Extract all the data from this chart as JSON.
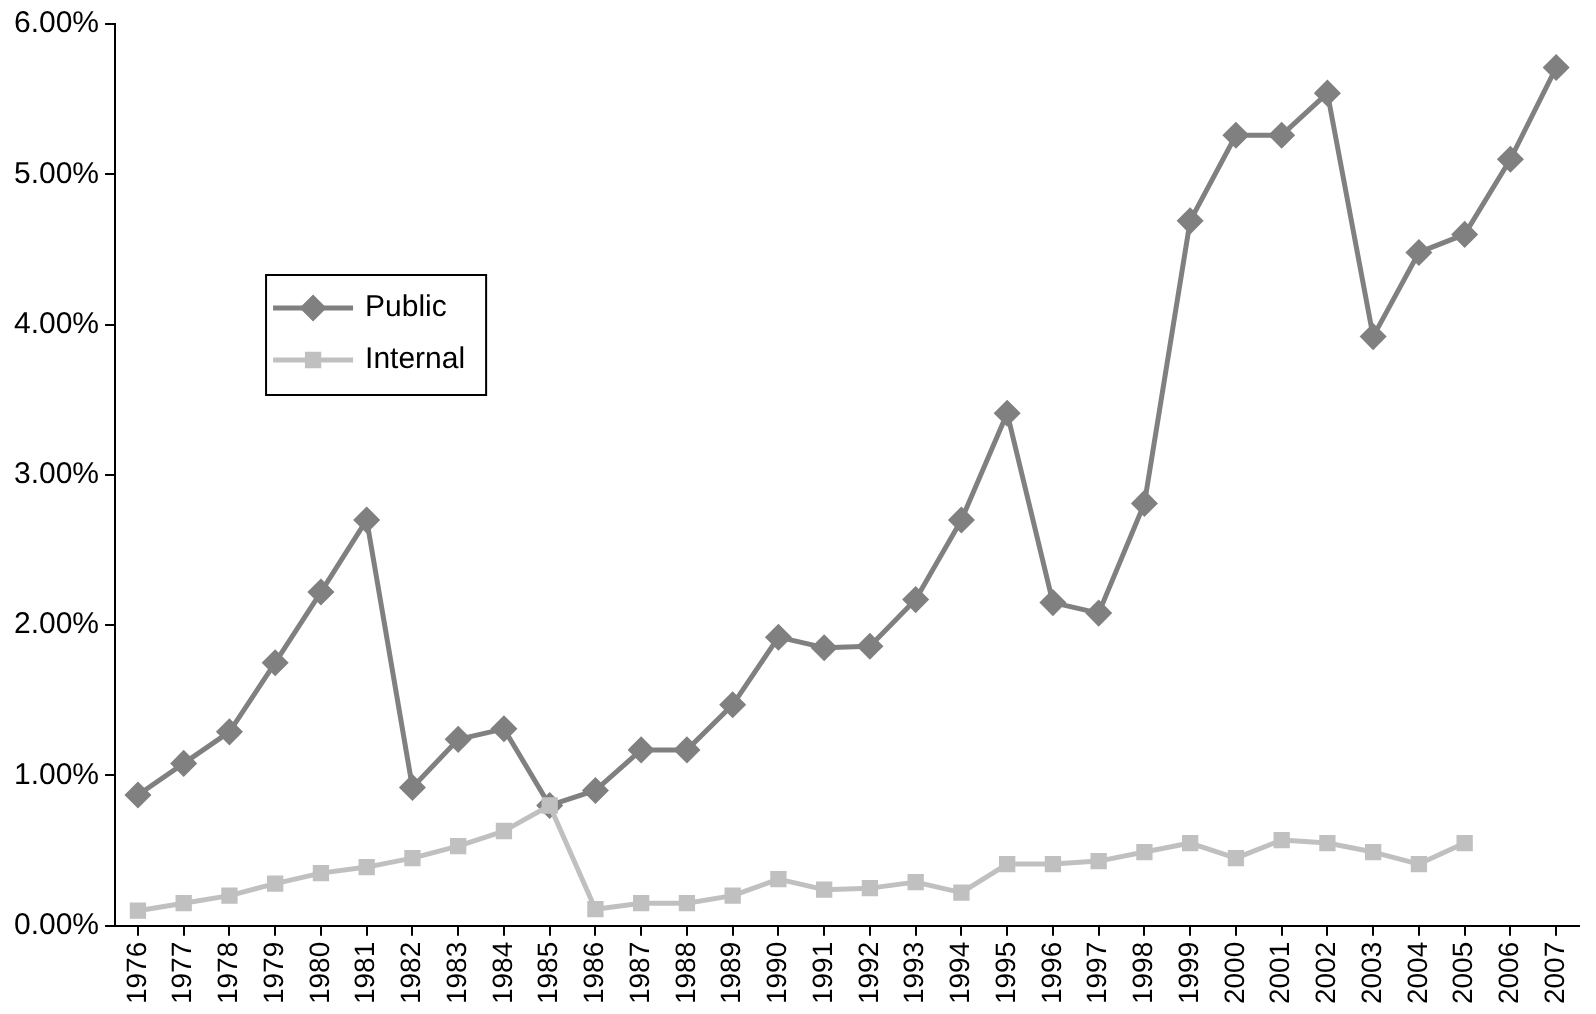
{
  "chart_data": {
    "type": "line",
    "categories": [
      "1976",
      "1977",
      "1978",
      "1979",
      "1980",
      "1981",
      "1982",
      "1983",
      "1984",
      "1985",
      "1986",
      "1987",
      "1988",
      "1989",
      "1990",
      "1991",
      "1992",
      "1993",
      "1994",
      "1995",
      "1996",
      "1997",
      "1998",
      "1999",
      "2000",
      "2001",
      "2002",
      "2003",
      "2004",
      "2005",
      "2006",
      "2007"
    ],
    "series": [
      {
        "name": "Public",
        "color": "#808080",
        "marker": "diamond",
        "values": [
          0.87,
          1.08,
          1.29,
          1.75,
          2.22,
          2.7,
          0.92,
          1.24,
          1.31,
          0.8,
          0.9,
          1.17,
          1.17,
          1.47,
          1.92,
          1.85,
          1.86,
          2.17,
          2.7,
          3.41,
          2.15,
          2.08,
          2.81,
          4.69,
          5.26,
          5.26,
          5.54,
          3.92,
          4.48,
          4.6,
          5.1,
          5.71
        ]
      },
      {
        "name": "Internal",
        "color": "#c0c0c0",
        "marker": "square",
        "values": [
          0.1,
          0.15,
          0.2,
          0.28,
          0.35,
          0.39,
          0.45,
          0.53,
          0.63,
          0.8,
          0.11,
          0.15,
          0.15,
          0.2,
          0.31,
          0.24,
          0.25,
          0.29,
          0.22,
          0.41,
          0.41,
          0.43,
          0.49,
          0.55,
          0.45,
          0.57,
          0.55,
          0.49,
          0.41,
          0.55,
          null,
          null
        ]
      }
    ],
    "ylim": [
      0,
      6
    ],
    "yticks": [
      {
        "value": 0,
        "label": "0.00%"
      },
      {
        "value": 1,
        "label": "1.00%"
      },
      {
        "value": 2,
        "label": "2.00%"
      },
      {
        "value": 3,
        "label": "3.00%"
      },
      {
        "value": 4,
        "label": "4.00%"
      },
      {
        "value": 5,
        "label": "5.00%"
      },
      {
        "value": 6,
        "label": "6.00%"
      }
    ],
    "grid": false,
    "legend": "top left",
    "line_style": "solid"
  }
}
